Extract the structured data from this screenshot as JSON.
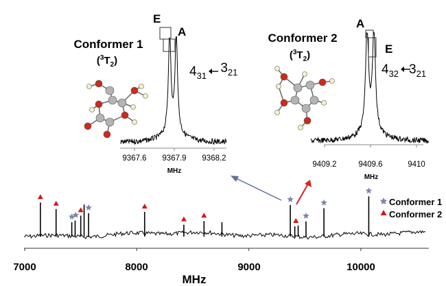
{
  "chart_data": [
    {
      "id": "main",
      "type": "line",
      "xlabel": "MHz",
      "xlim": [
        7000,
        10250
      ],
      "xticks": [
        7000,
        8000,
        9000,
        10000
      ],
      "tick_labels": [
        "7000",
        "8000",
        "9000",
        "10000"
      ],
      "peaks": [
        {
          "x": 7140,
          "h": 0.78
        },
        {
          "x": 7280,
          "h": 0.62
        },
        {
          "x": 7420,
          "h": 0.3
        },
        {
          "x": 7450,
          "h": 0.34
        },
        {
          "x": 7500,
          "h": 0.46
        },
        {
          "x": 7530,
          "h": 0.73
        },
        {
          "x": 7570,
          "h": 0.52
        },
        {
          "x": 8070,
          "h": 0.55
        },
        {
          "x": 8420,
          "h": 0.24
        },
        {
          "x": 8600,
          "h": 0.33
        },
        {
          "x": 8760,
          "h": 0.3
        },
        {
          "x": 9370,
          "h": 0.72
        },
        {
          "x": 9410,
          "h": 0.2
        },
        {
          "x": 9440,
          "h": 0.22
        },
        {
          "x": 9510,
          "h": 0.32
        },
        {
          "x": 9670,
          "h": 0.64
        },
        {
          "x": 10070,
          "h": 0.93
        }
      ],
      "markers": [
        {
          "x": 7140,
          "conformer": 2
        },
        {
          "x": 7280,
          "conformer": 2
        },
        {
          "x": 7420,
          "conformer": 1
        },
        {
          "x": 7455,
          "conformer": 1
        },
        {
          "x": 7500,
          "conformer": 2
        },
        {
          "x": 7570,
          "conformer": 1
        },
        {
          "x": 8070,
          "conformer": 2
        },
        {
          "x": 8420,
          "conformer": 2
        },
        {
          "x": 8600,
          "conformer": 2
        },
        {
          "x": 9370,
          "conformer": 1
        },
        {
          "x": 9420,
          "conformer": 2
        },
        {
          "x": 9510,
          "conformer": 1
        },
        {
          "x": 9670,
          "conformer": 1
        },
        {
          "x": 10070,
          "conformer": 1
        }
      ],
      "legend": [
        {
          "name": "Conformer 1",
          "marker": "star",
          "color": "#7a86a8"
        },
        {
          "name": "Conformer 2",
          "marker": "triangle",
          "color": "#d01818"
        }
      ]
    },
    {
      "id": "inset1",
      "type": "line",
      "title": "Conformer 1",
      "subtitle": {
        "pre": "(",
        "sup": "3",
        "main": "T",
        "sub": "2",
        "post": ")"
      },
      "transition": {
        "j1": "4",
        "j1sub": "31",
        "j2": "3",
        "j2sub": "21"
      },
      "xlabel": "MHz",
      "xlim": [
        9367.5,
        9368.25
      ],
      "xticks": [
        9367.6,
        9367.9,
        9368.2
      ],
      "tick_labels": [
        "9367.6",
        "9367.9",
        "9368.2"
      ],
      "doublet": [
        {
          "label": "E",
          "x": 9367.865
        },
        {
          "label": "A",
          "x": 9367.915
        }
      ]
    },
    {
      "id": "inset2",
      "type": "line",
      "title": "Conformer 2",
      "subtitle": {
        "pre": "(",
        "sup": "3",
        "main": "T",
        "sub": "2",
        "post": ")"
      },
      "transition": {
        "j1": "4",
        "j1sub": "32",
        "j2": "3",
        "j2sub": "21"
      },
      "xlabel": "MHz",
      "xlim": [
        9409.0,
        9410.1
      ],
      "xticks": [
        9409.2,
        9409.6,
        9410
      ],
      "tick_labels": [
        "9409.2",
        "9409.6",
        "9410"
      ],
      "doublet": [
        {
          "label": "A",
          "x": 9409.57
        },
        {
          "label": "E",
          "x": 9409.63
        }
      ]
    }
  ],
  "colors": {
    "spectrum": "#000000",
    "conformer1_marker": "#7a86a8",
    "conformer2_marker": "#d01818",
    "arrow_blue": "#5f6f9a",
    "arrow_red": "#e02020",
    "oxygen": "#cc2a1a",
    "carbon": "#b4b4b4",
    "hydrogen": "#f4f2c8"
  }
}
